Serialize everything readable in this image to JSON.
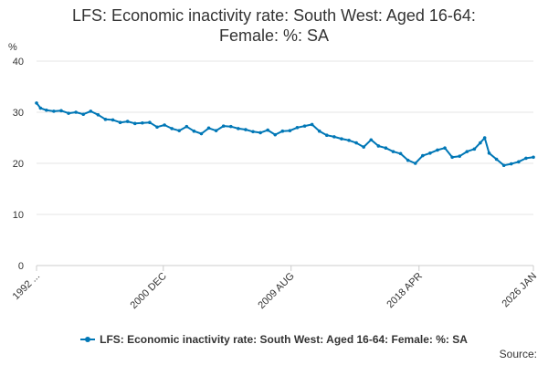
{
  "chart_data": {
    "type": "line",
    "title_line1": "LFS: Economic inactivity rate: South West: Aged 16-64:",
    "title_line2": "Female: %: SA",
    "ylabel": "%",
    "ylim": [
      0,
      40
    ],
    "yticks": [
      0,
      10,
      20,
      30,
      40
    ],
    "xlim": [
      1992.33,
      2026.0
    ],
    "xticks": [
      {
        "label": "1992 ...",
        "x": 1992.33
      },
      {
        "label": "2000 DEC",
        "x": 2000.92
      },
      {
        "label": "2009 AUG",
        "x": 2009.58
      },
      {
        "label": "2018 APR",
        "x": 2018.25
      },
      {
        "label": "2026 JAN",
        "x": 2026.0
      }
    ],
    "grid": true,
    "legend_position": "bottom",
    "color": "#0077b6",
    "series": [
      {
        "name": "LFS: Economic inactivity rate: South West: Aged 16-64: Female: %: SA",
        "x": [
          1992.33,
          1992.6,
          1993.0,
          1993.5,
          1994.0,
          1994.5,
          1995.0,
          1995.5,
          1996.0,
          1996.5,
          1997.0,
          1997.5,
          1998.0,
          1998.5,
          1999.0,
          1999.5,
          2000.0,
          2000.5,
          2001.0,
          2001.5,
          2002.0,
          2002.5,
          2003.0,
          2003.5,
          2004.0,
          2004.5,
          2005.0,
          2005.5,
          2006.0,
          2006.5,
          2007.0,
          2007.5,
          2008.0,
          2008.5,
          2009.0,
          2009.5,
          2010.0,
          2010.5,
          2011.0,
          2011.5,
          2012.0,
          2012.5,
          2013.0,
          2013.5,
          2014.0,
          2014.5,
          2015.0,
          2015.5,
          2016.0,
          2016.5,
          2017.0,
          2017.5,
          2018.0,
          2018.5,
          2019.0,
          2019.5,
          2020.0,
          2020.5,
          2021.0,
          2021.5,
          2022.0,
          2022.4,
          2022.7,
          2023.0,
          2023.5,
          2024.0,
          2024.5,
          2025.0,
          2025.5,
          2026.0
        ],
        "values": [
          31.8,
          30.8,
          30.4,
          30.2,
          30.3,
          29.8,
          30.0,
          29.6,
          30.2,
          29.5,
          28.6,
          28.5,
          28.0,
          28.2,
          27.8,
          27.9,
          28.0,
          27.1,
          27.5,
          26.8,
          26.4,
          27.2,
          26.3,
          25.8,
          26.9,
          26.4,
          27.3,
          27.2,
          26.8,
          26.6,
          26.2,
          26.0,
          26.5,
          25.6,
          26.3,
          26.4,
          27.0,
          27.3,
          27.6,
          26.3,
          25.5,
          25.2,
          24.8,
          24.5,
          24.0,
          23.2,
          24.6,
          23.4,
          23.0,
          22.3,
          21.9,
          20.6,
          20.0,
          21.5,
          22.0,
          22.6,
          23.0,
          21.2,
          21.4,
          22.3,
          22.8,
          24.0,
          25.0,
          22.0,
          20.8,
          19.6,
          19.9,
          20.3,
          21.0,
          21.2
        ]
      }
    ]
  },
  "source_label": "Source:"
}
